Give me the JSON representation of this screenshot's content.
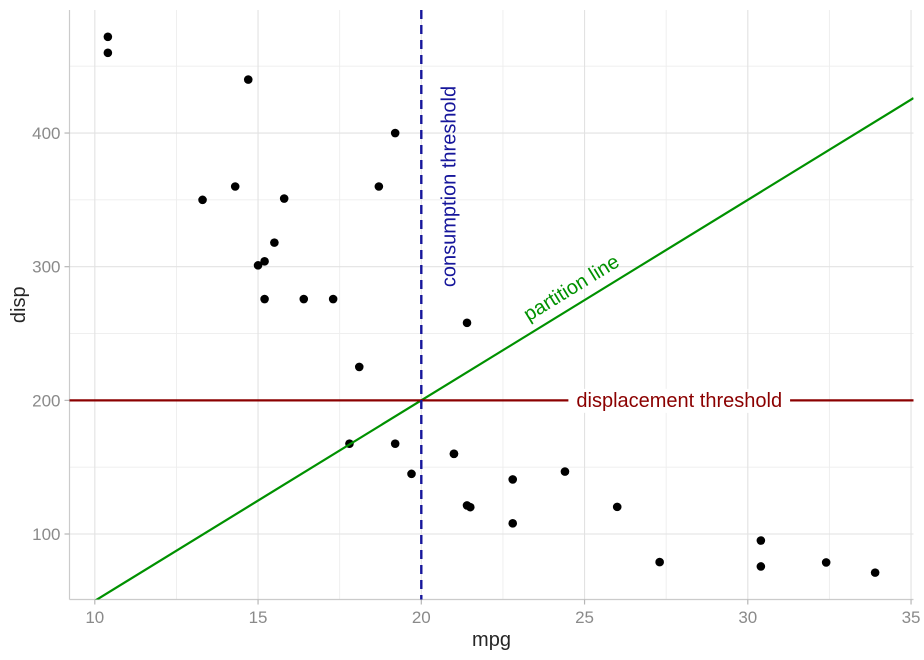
{
  "figure": {
    "background": "#ffffff"
  },
  "theme": {
    "grid_major_color": "#e2e2e2",
    "grid_minor_color": "#ededed",
    "axis_line_color": "#cbcbcb",
    "tick_mark_color": "#b6b6b6",
    "tick_label_color": "#8a8a8a",
    "axis_title_color": "#262626"
  },
  "chart_data": {
    "type": "scatter",
    "title": "",
    "xlabel": "mpg",
    "ylabel": "disp",
    "xlim": [
      9.225,
      35.075
    ],
    "ylim": [
      51,
      492.05
    ],
    "x_ticks": [
      10,
      15,
      20,
      25,
      30,
      35
    ],
    "x_minor_ticks": [
      12.5,
      17.5,
      22.5,
      27.5,
      32.5
    ],
    "y_ticks": [
      100,
      200,
      300,
      400
    ],
    "y_minor_ticks": [
      150,
      250,
      350,
      450
    ],
    "grid": "major+minor",
    "legend": "none",
    "point_color": "#000000",
    "point_radius": 4.3,
    "points_format": [
      "mpg",
      "disp"
    ],
    "points": [
      [
        21.0,
        160
      ],
      [
        21.0,
        160
      ],
      [
        22.8,
        108
      ],
      [
        21.4,
        258
      ],
      [
        18.7,
        360
      ],
      [
        18.1,
        225
      ],
      [
        14.3,
        360
      ],
      [
        24.4,
        146.7
      ],
      [
        22.8,
        140.8
      ],
      [
        19.2,
        167.6
      ],
      [
        17.8,
        167.6
      ],
      [
        16.4,
        275.8
      ],
      [
        17.3,
        275.8
      ],
      [
        15.2,
        275.8
      ],
      [
        10.4,
        472
      ],
      [
        10.4,
        460
      ],
      [
        14.7,
        440
      ],
      [
        32.4,
        78.7
      ],
      [
        30.4,
        75.7
      ],
      [
        33.9,
        71.1
      ],
      [
        21.5,
        120.1
      ],
      [
        15.5,
        318
      ],
      [
        15.2,
        304
      ],
      [
        13.3,
        350
      ],
      [
        19.2,
        400
      ],
      [
        27.3,
        79
      ],
      [
        26.0,
        120.3
      ],
      [
        30.4,
        95.1
      ],
      [
        15.8,
        351
      ],
      [
        19.7,
        145
      ],
      [
        15.0,
        301
      ],
      [
        21.4,
        121.4
      ]
    ],
    "reference_lines": {
      "vline": {
        "x": 20,
        "label": "consumption threshold",
        "color": "#16169b",
        "style": "dashed",
        "label_pos": {
          "mpg": 21.05,
          "disp": 360
        },
        "label_angle": -90
      },
      "hline": {
        "y": 200,
        "label": "displacement threshold",
        "color": "#8b0000",
        "style": "solid",
        "label_pos": {
          "mpg": 27.9,
          "disp": 200
        },
        "label_background": "#ffffff"
      },
      "abline": {
        "slope": 15,
        "intercept": -100,
        "label": "partition line",
        "color": "#009100",
        "style": "solid",
        "label_pos": {
          "mpg": 24.7,
          "disp": 280
        }
      }
    }
  }
}
